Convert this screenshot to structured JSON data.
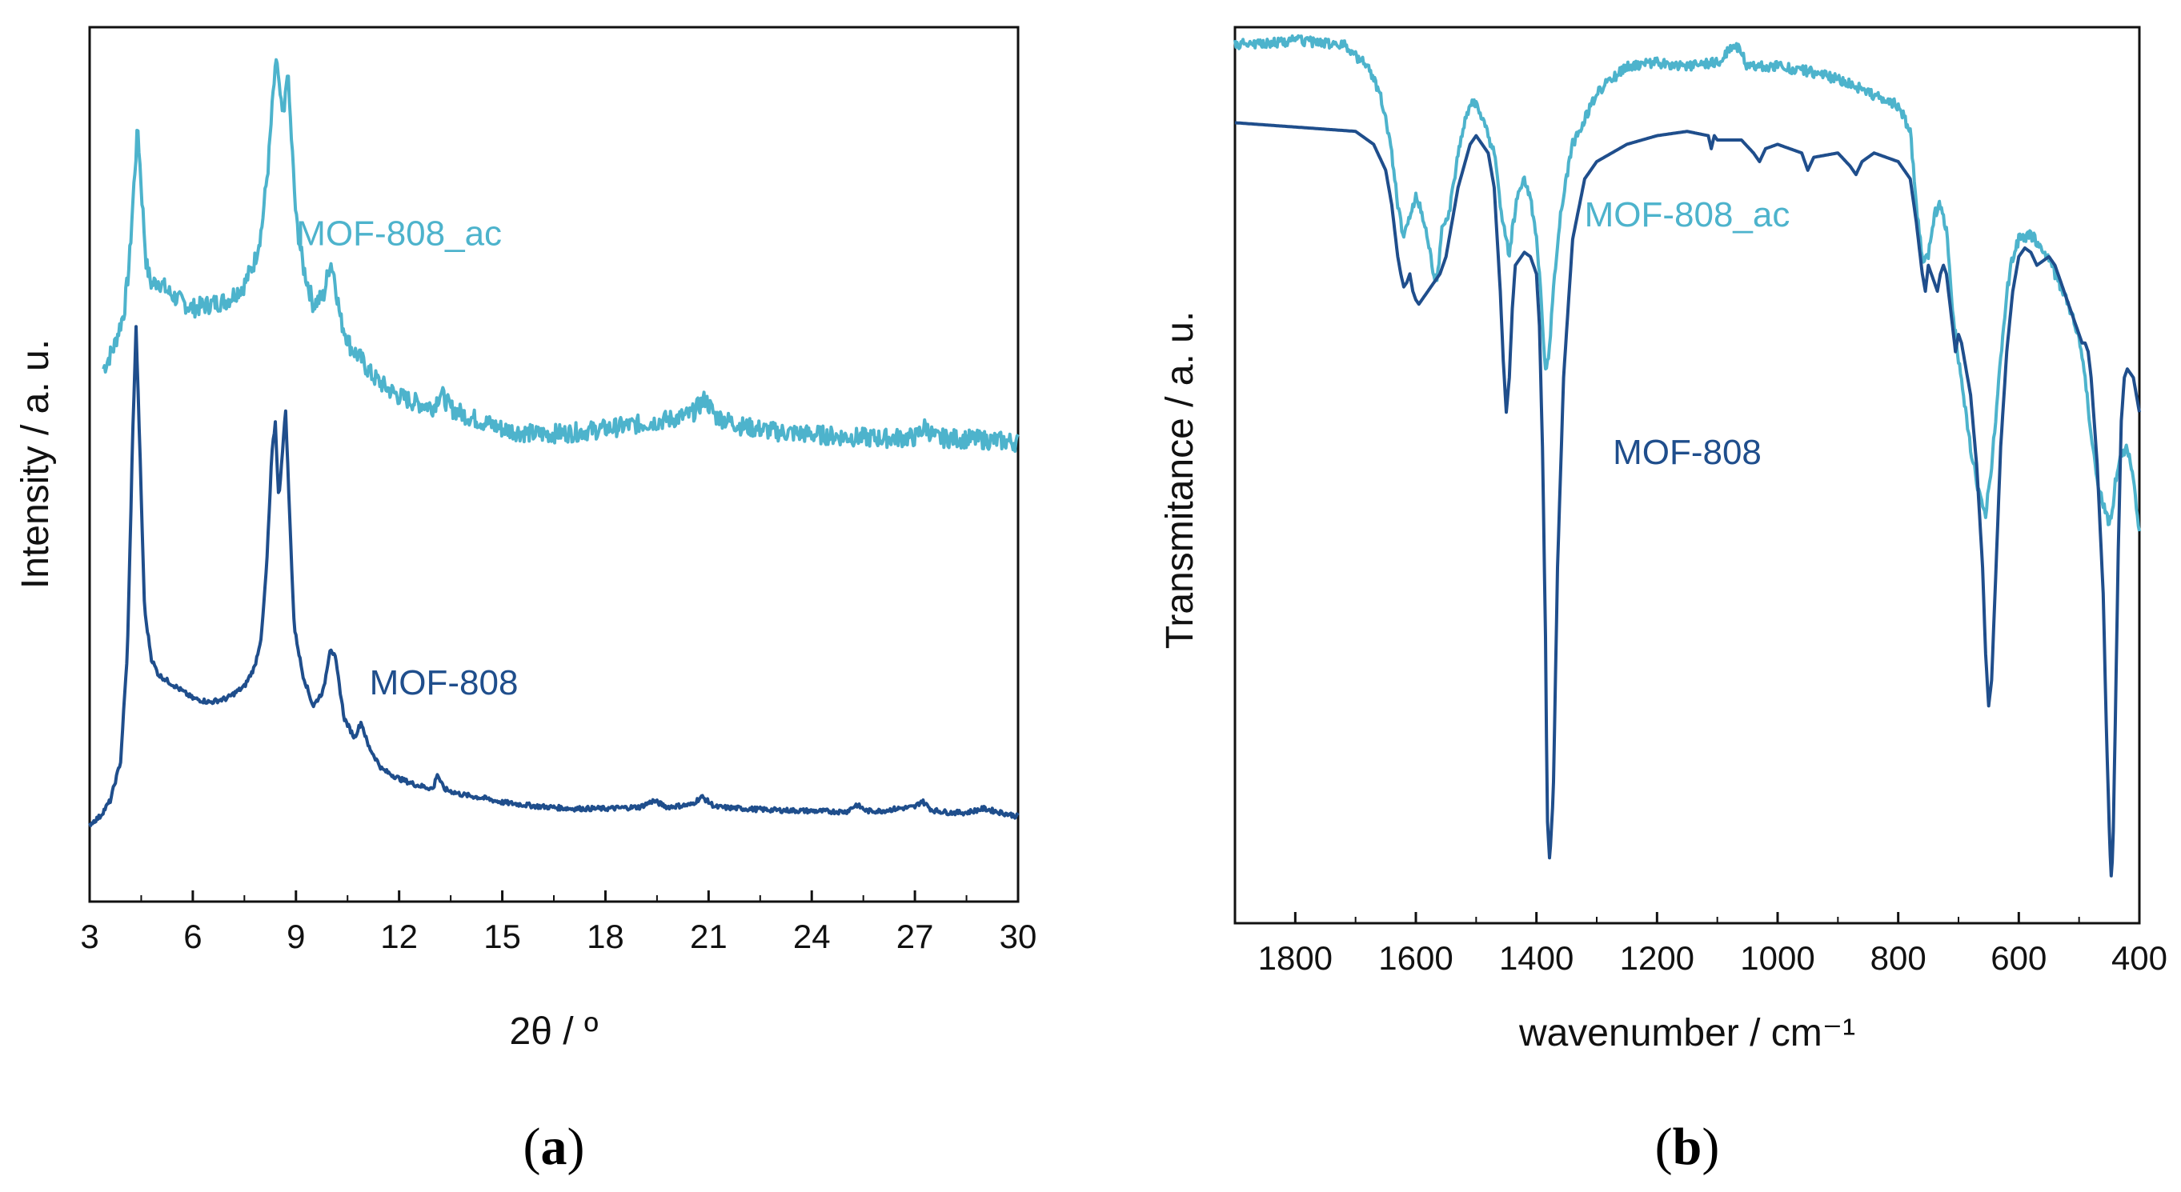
{
  "colors": {
    "light": "#4db3cc",
    "dark": "#1f4e8c",
    "axis": "#111111"
  },
  "chart_data": [
    {
      "type": "line",
      "panel_label": "a",
      "xlabel": "2θ / º",
      "ylabel": "Intensity / a. u.",
      "xlim": [
        3,
        30
      ],
      "ylim": [
        0,
        1
      ],
      "xticks": [
        3,
        6,
        9,
        12,
        15,
        18,
        21,
        24,
        27,
        30
      ],
      "tick_labels": [
        "3",
        "6",
        "9",
        "12",
        "15",
        "18",
        "21",
        "24",
        "27",
        "30"
      ],
      "series": [
        {
          "name": "MOF-808_ac",
          "color": "#4db3cc",
          "noise": 0.012,
          "x": [
            3.4,
            3.7,
            4.0,
            4.15,
            4.3,
            4.4,
            4.5,
            4.65,
            4.8,
            5.0,
            5.3,
            5.6,
            6.0,
            6.5,
            7.0,
            7.5,
            7.8,
            8.0,
            8.2,
            8.35,
            8.45,
            8.55,
            8.65,
            8.75,
            8.85,
            9.0,
            9.2,
            9.5,
            9.8,
            10.0,
            10.1,
            10.3,
            10.6,
            10.9,
            11.2,
            11.6,
            12.0,
            12.5,
            13.0,
            13.2,
            13.5,
            14.0,
            14.5,
            15.0,
            15.5,
            16.0,
            17.0,
            18.0,
            19.0,
            20.0,
            20.5,
            20.9,
            21.2,
            22.0,
            23.0,
            24.0,
            25.0,
            26.0,
            27.0,
            27.3,
            27.6,
            28.0,
            29.0,
            30.0
          ],
          "y": [
            0.608,
            0.635,
            0.68,
            0.74,
            0.85,
            0.915,
            0.84,
            0.74,
            0.715,
            0.72,
            0.705,
            0.695,
            0.685,
            0.69,
            0.695,
            0.715,
            0.745,
            0.785,
            0.87,
            0.965,
            1.0,
            0.945,
            0.925,
            0.99,
            0.915,
            0.8,
            0.74,
            0.69,
            0.7,
            0.745,
            0.73,
            0.67,
            0.635,
            0.62,
            0.6,
            0.585,
            0.573,
            0.565,
            0.56,
            0.578,
            0.558,
            0.548,
            0.54,
            0.532,
            0.528,
            0.525,
            0.527,
            0.532,
            0.538,
            0.545,
            0.55,
            0.57,
            0.548,
            0.535,
            0.528,
            0.525,
            0.522,
            0.52,
            0.521,
            0.535,
            0.52,
            0.52,
            0.518,
            0.515
          ]
        },
        {
          "name": "MOF-808",
          "color": "#1f4e8c",
          "noise": 0.003,
          "x": [
            3.0,
            3.3,
            3.6,
            3.9,
            4.1,
            4.25,
            4.35,
            4.45,
            4.6,
            4.8,
            5.0,
            5.5,
            6.0,
            6.5,
            7.0,
            7.5,
            7.8,
            8.0,
            8.15,
            8.3,
            8.4,
            8.5,
            8.6,
            8.7,
            8.8,
            8.95,
            9.2,
            9.5,
            9.8,
            10.0,
            10.15,
            10.4,
            10.7,
            10.9,
            11.1,
            11.5,
            12.0,
            12.5,
            13.0,
            13.1,
            13.3,
            13.8,
            14.5,
            15.0,
            16.0,
            17.0,
            18.0,
            19.0,
            19.4,
            19.8,
            20.5,
            20.8,
            21.2,
            22.0,
            23.0,
            24.0,
            25.0,
            25.3,
            25.6,
            26.0,
            26.5,
            27.0,
            27.2,
            27.5,
            28.0,
            28.5,
            29.0,
            29.5,
            30.0
          ],
          "y": [
            0.03,
            0.04,
            0.06,
            0.11,
            0.25,
            0.52,
            0.66,
            0.52,
            0.3,
            0.24,
            0.22,
            0.205,
            0.19,
            0.185,
            0.19,
            0.205,
            0.23,
            0.27,
            0.36,
            0.5,
            0.54,
            0.44,
            0.5,
            0.555,
            0.44,
            0.28,
            0.22,
            0.18,
            0.2,
            0.255,
            0.24,
            0.165,
            0.14,
            0.16,
            0.13,
            0.1,
            0.088,
            0.08,
            0.075,
            0.095,
            0.075,
            0.068,
            0.063,
            0.058,
            0.053,
            0.05,
            0.05,
            0.052,
            0.06,
            0.052,
            0.055,
            0.065,
            0.052,
            0.05,
            0.048,
            0.047,
            0.046,
            0.055,
            0.047,
            0.047,
            0.05,
            0.052,
            0.06,
            0.048,
            0.045,
            0.045,
            0.05,
            0.045,
            0.04
          ]
        }
      ],
      "annotations": [
        {
          "text": "MOF-808_ac",
          "color": "#4db3cc",
          "x": 12.0,
          "y": 0.765
        },
        {
          "text": "MOF-808",
          "color": "#1f4e8c",
          "x": 13.3,
          "y": 0.195
        }
      ]
    },
    {
      "type": "line",
      "panel_label": "b",
      "xlabel": "wavenumber / cm⁻¹",
      "ylabel": "Transmitance / a. u.",
      "xlim": [
        1900,
        400
      ],
      "ylim": [
        0,
        1
      ],
      "xticks": [
        1800,
        1600,
        1400,
        1200,
        1000,
        800,
        600,
        400
      ],
      "tick_labels": [
        "1800",
        "1600",
        "1400",
        "1200",
        "1000",
        "800",
        "600",
        "400"
      ],
      "series": [
        {
          "name": "MOF-808_ac",
          "color": "#4db3cc",
          "noise": 0.006,
          "x": [
            1900,
            1800,
            1720,
            1680,
            1660,
            1650,
            1640,
            1630,
            1620,
            1610,
            1600,
            1590,
            1580,
            1570,
            1565,
            1560,
            1555,
            1545,
            1530,
            1510,
            1500,
            1490,
            1470,
            1460,
            1450,
            1445,
            1440,
            1430,
            1420,
            1410,
            1400,
            1395,
            1390,
            1385,
            1380,
            1375,
            1370,
            1360,
            1340,
            1300,
            1250,
            1200,
            1150,
            1100,
            1070,
            1060,
            1050,
            1000,
            950,
            900,
            880,
            850,
            800,
            780,
            770,
            760,
            750,
            740,
            730,
            720,
            710,
            700,
            690,
            680,
            670,
            660,
            655,
            650,
            645,
            640,
            630,
            620,
            610,
            600,
            580,
            560,
            540,
            520,
            500,
            490,
            480,
            470,
            460,
            455,
            450,
            445,
            440,
            430,
            420,
            415,
            410,
            405,
            400
          ],
          "y": [
            0.985,
            0.99,
            0.985,
            0.96,
            0.93,
            0.9,
            0.86,
            0.8,
            0.76,
            0.79,
            0.81,
            0.79,
            0.76,
            0.72,
            0.71,
            0.75,
            0.78,
            0.79,
            0.86,
            0.92,
            0.915,
            0.9,
            0.86,
            0.8,
            0.76,
            0.74,
            0.77,
            0.82,
            0.83,
            0.81,
            0.76,
            0.72,
            0.66,
            0.61,
            0.62,
            0.67,
            0.72,
            0.79,
            0.87,
            0.93,
            0.96,
            0.965,
            0.96,
            0.965,
            0.985,
            0.975,
            0.96,
            0.96,
            0.955,
            0.945,
            0.94,
            0.93,
            0.915,
            0.885,
            0.8,
            0.735,
            0.74,
            0.79,
            0.8,
            0.77,
            0.68,
            0.62,
            0.57,
            0.52,
            0.48,
            0.45,
            0.44,
            0.47,
            0.5,
            0.54,
            0.62,
            0.7,
            0.74,
            0.76,
            0.765,
            0.75,
            0.72,
            0.69,
            0.645,
            0.6,
            0.53,
            0.48,
            0.455,
            0.44,
            0.43,
            0.445,
            0.48,
            0.51,
            0.52,
            0.505,
            0.48,
            0.45,
            0.42
          ]
        },
        {
          "name": "MOF-808",
          "color": "#1f4e8c",
          "noise": 0.0,
          "x": [
            1900,
            1800,
            1700,
            1670,
            1650,
            1640,
            1630,
            1625,
            1620,
            1615,
            1610,
            1605,
            1600,
            1595,
            1590,
            1580,
            1570,
            1560,
            1550,
            1530,
            1510,
            1500,
            1490,
            1480,
            1470,
            1460,
            1455,
            1450,
            1445,
            1440,
            1435,
            1420,
            1410,
            1400,
            1395,
            1390,
            1385,
            1382,
            1378,
            1372,
            1365,
            1355,
            1340,
            1320,
            1300,
            1250,
            1200,
            1150,
            1115,
            1110,
            1105,
            1100,
            1060,
            1040,
            1030,
            1020,
            1000,
            960,
            950,
            940,
            900,
            880,
            870,
            860,
            840,
            800,
            780,
            770,
            760,
            755,
            750,
            740,
            735,
            730,
            725,
            720,
            710,
            705,
            700,
            695,
            690,
            680,
            670,
            660,
            655,
            650,
            645,
            640,
            630,
            620,
            610,
            600,
            590,
            580,
            570,
            560,
            550,
            540,
            530,
            520,
            510,
            500,
            495,
            490,
            485,
            480,
            470,
            460,
            455,
            450,
            447,
            444,
            440,
            435,
            430,
            425,
            420,
            410,
            400
          ],
          "y": [
            0.895,
            0.89,
            0.885,
            0.87,
            0.84,
            0.8,
            0.74,
            0.72,
            0.705,
            0.71,
            0.72,
            0.7,
            0.69,
            0.685,
            0.69,
            0.7,
            0.71,
            0.72,
            0.74,
            0.82,
            0.87,
            0.88,
            0.87,
            0.86,
            0.82,
            0.7,
            0.62,
            0.56,
            0.6,
            0.68,
            0.73,
            0.745,
            0.74,
            0.72,
            0.66,
            0.52,
            0.3,
            0.09,
            0.04,
            0.12,
            0.38,
            0.6,
            0.76,
            0.83,
            0.85,
            0.87,
            0.88,
            0.885,
            0.88,
            0.865,
            0.88,
            0.875,
            0.875,
            0.86,
            0.85,
            0.865,
            0.87,
            0.86,
            0.84,
            0.855,
            0.86,
            0.845,
            0.835,
            0.85,
            0.86,
            0.85,
            0.83,
            0.78,
            0.72,
            0.7,
            0.73,
            0.71,
            0.7,
            0.72,
            0.73,
            0.72,
            0.66,
            0.63,
            0.65,
            0.64,
            0.62,
            0.58,
            0.5,
            0.38,
            0.28,
            0.22,
            0.25,
            0.34,
            0.52,
            0.63,
            0.7,
            0.74,
            0.75,
            0.745,
            0.73,
            0.735,
            0.74,
            0.73,
            0.71,
            0.69,
            0.67,
            0.65,
            0.64,
            0.64,
            0.63,
            0.6,
            0.5,
            0.35,
            0.2,
            0.08,
            0.02,
            0.05,
            0.2,
            0.4,
            0.55,
            0.6,
            0.61,
            0.6,
            0.56
          ]
        }
      ],
      "annotations": [
        {
          "text": "MOF-808_ac",
          "color": "#4db3cc",
          "x": 1150,
          "y": 0.775
        },
        {
          "text": "MOF-808",
          "color": "#1f4e8c",
          "x": 1150,
          "y": 0.5
        }
      ]
    }
  ]
}
